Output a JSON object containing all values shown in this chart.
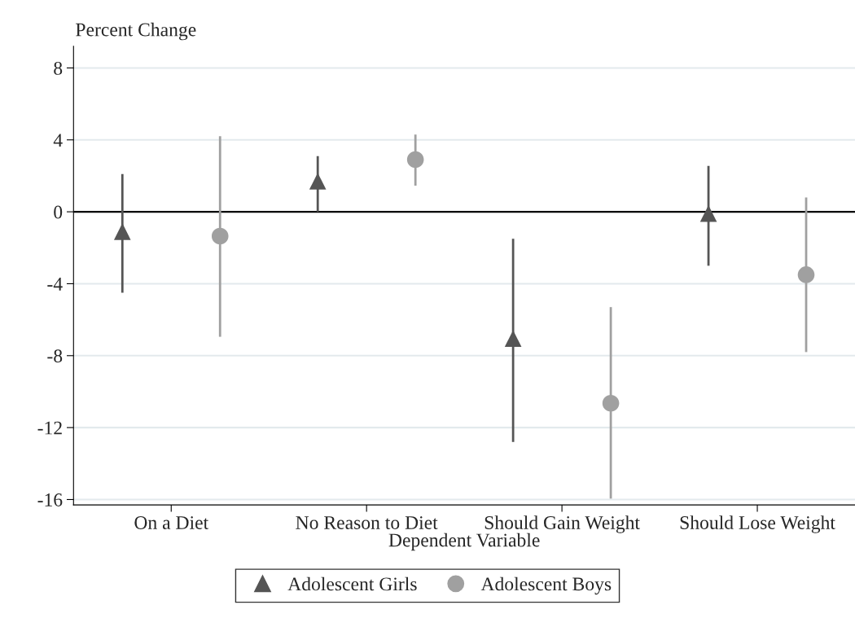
{
  "chart_data": {
    "type": "scatter",
    "xlabel": "Dependent Variable",
    "ylabel": "Percent Change",
    "categories": [
      "On a Diet",
      "No Reason to Diet",
      "Should Gain Weight",
      "Should Lose Weight"
    ],
    "series": [
      {
        "name": "Adolescent Girls",
        "color": "#555555",
        "marker": "triangle",
        "values": [
          -1.1,
          1.7,
          -7.05,
          -0.1
        ],
        "errors": [
          [
            -4.5,
            2.1
          ],
          [
            0.0,
            3.1
          ],
          [
            -12.8,
            -1.5
          ],
          [
            -3.0,
            2.55
          ]
        ]
      },
      {
        "name": "Adolescent Boys",
        "color": "#a0a0a0",
        "marker": "circle",
        "values": [
          -1.35,
          2.9,
          -10.65,
          -3.5
        ],
        "errors": [
          [
            -6.95,
            4.2
          ],
          [
            1.45,
            4.3
          ],
          [
            -15.95,
            -5.3
          ],
          [
            -7.8,
            0.8
          ]
        ]
      }
    ],
    "ylim": [
      -16.3,
      9.2
    ],
    "yticks": [
      -16,
      -12,
      -8,
      -4,
      0,
      4,
      8
    ],
    "ref_lines": [
      {
        "axis": "y",
        "value": 0,
        "color": "#000000"
      }
    ],
    "grid": "y",
    "legend": "bottom"
  }
}
